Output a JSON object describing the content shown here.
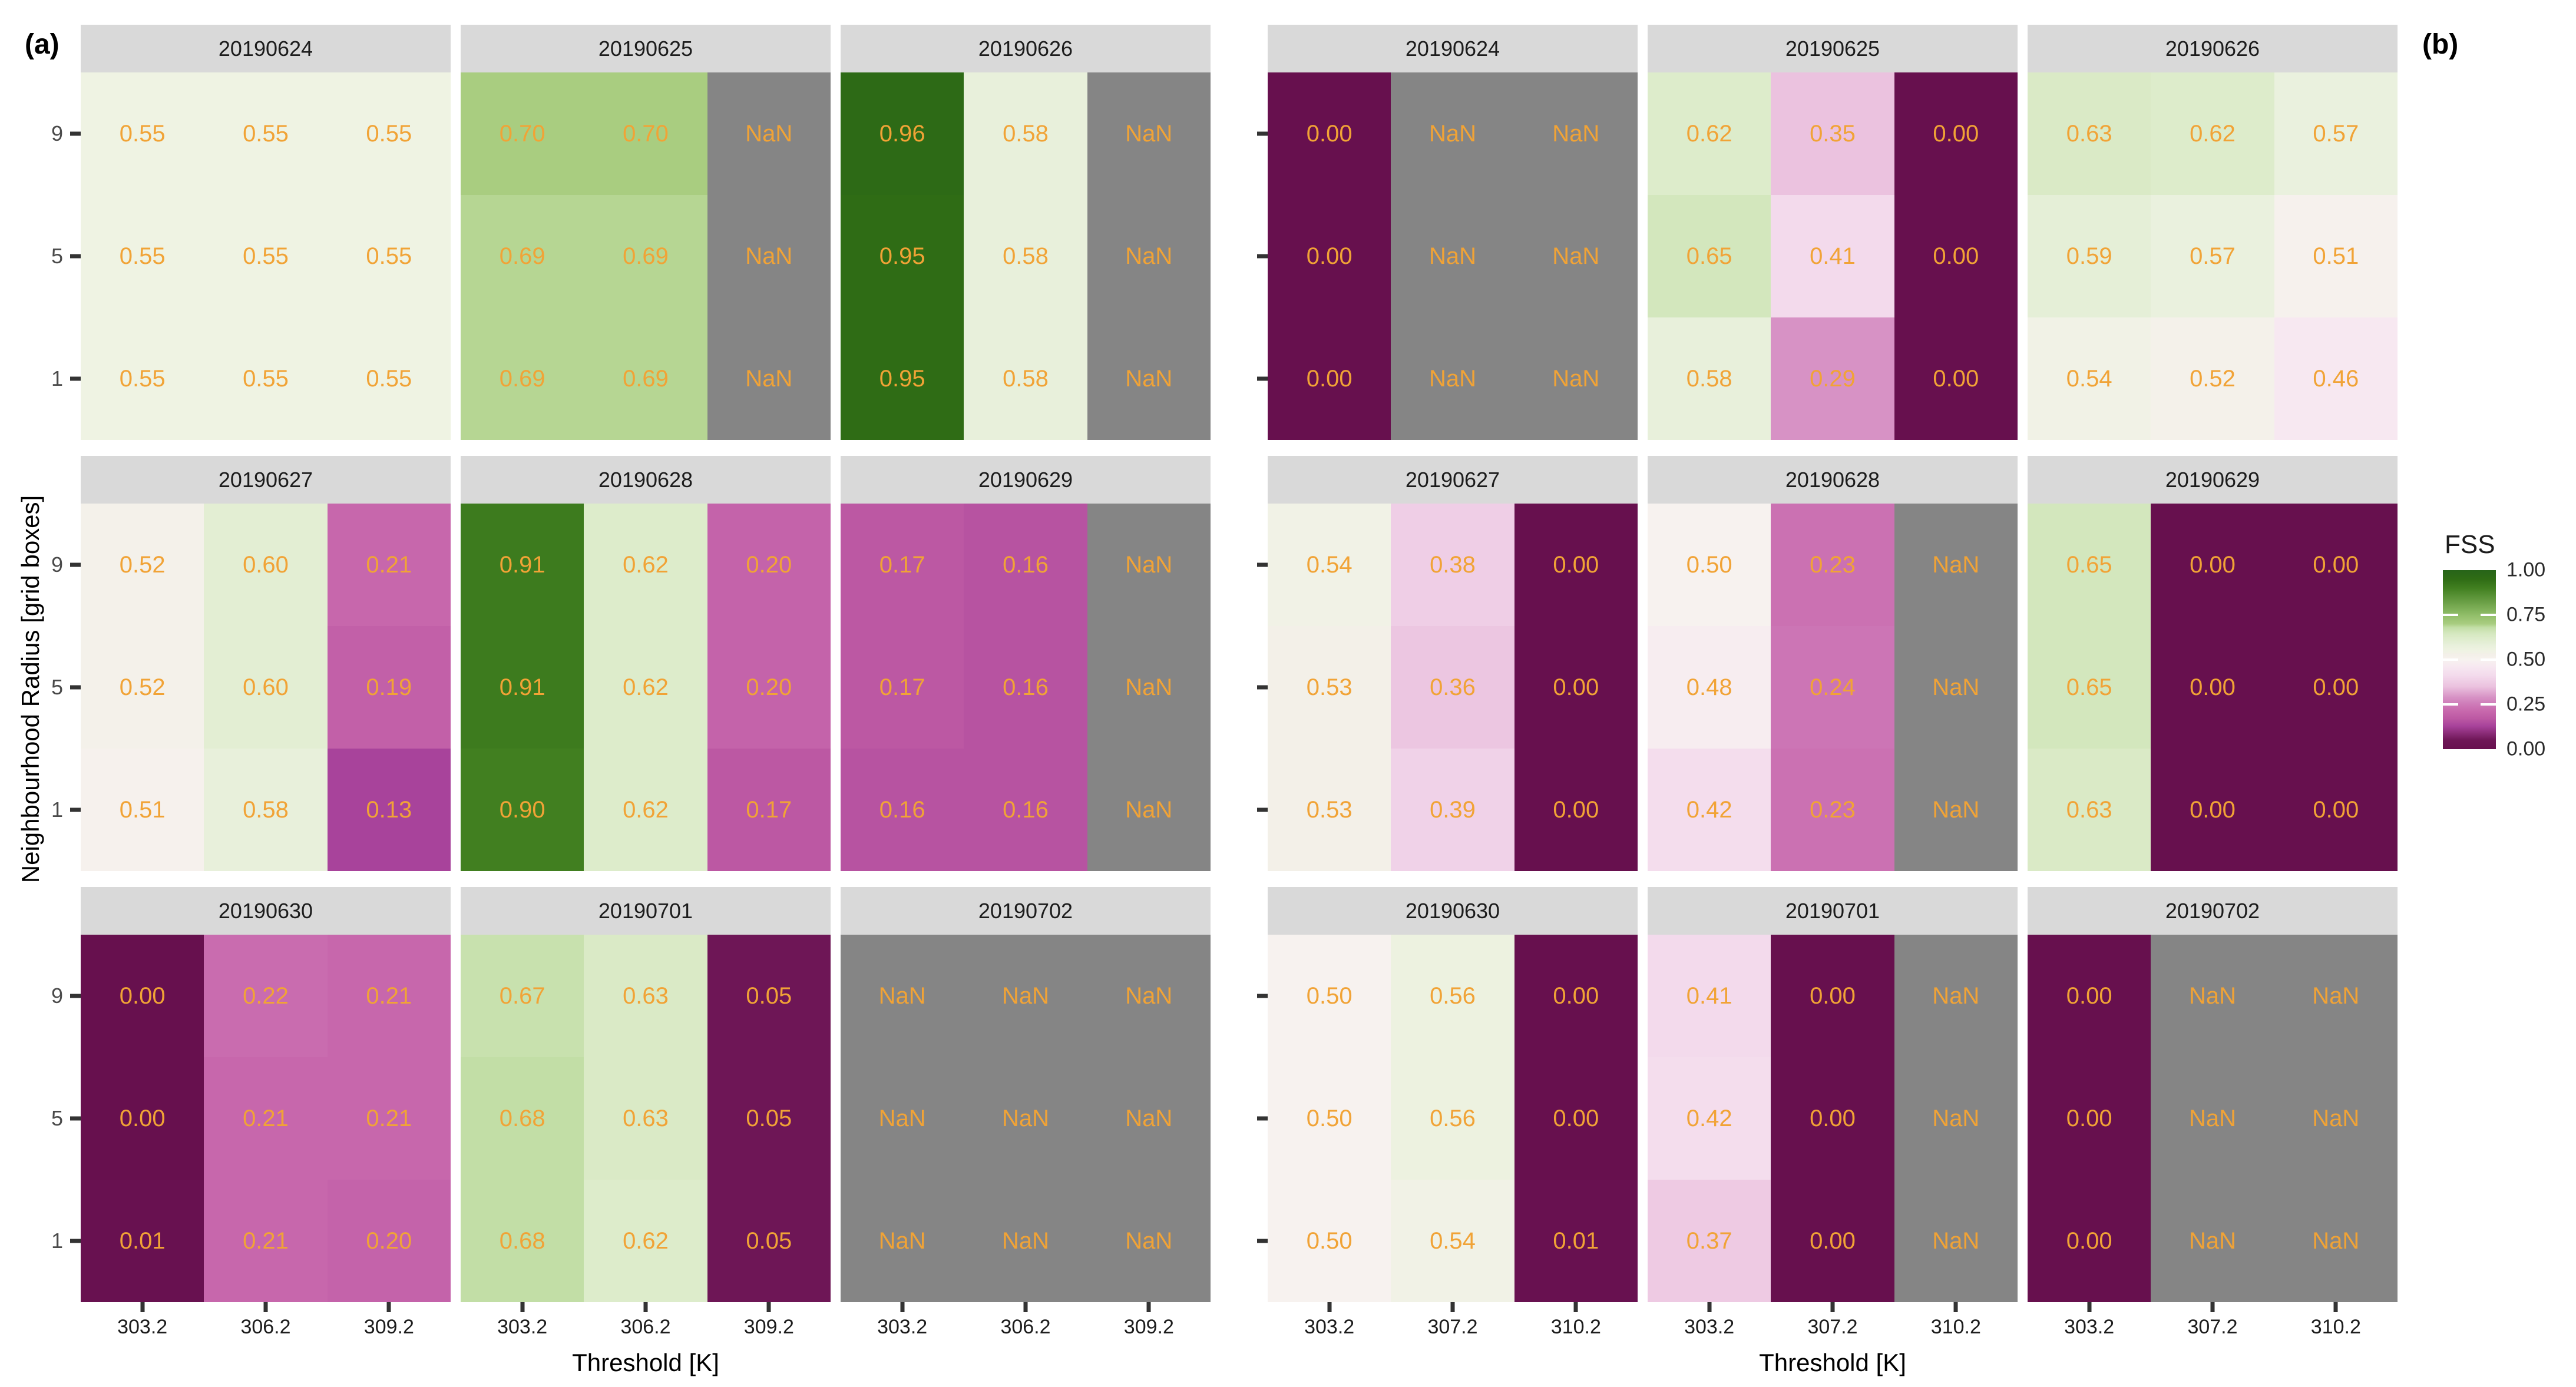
{
  "figure": {
    "background": "#FFFFFF",
    "ylabel": "Neighbourhood Radius [grid boxes]"
  },
  "legend": {
    "title": "FSS",
    "ticks": [
      "1.00",
      "0.75",
      "0.50",
      "0.25",
      "0.00"
    ],
    "tick_values": [
      1.0,
      0.75,
      0.5,
      0.25,
      0.0
    ]
  },
  "colors": {
    "nan_cell": "#858585",
    "value_text": "#F1A336",
    "strip_bg": "#D9D9D9",
    "strip_text": "#1C1C1C",
    "tick_mark": "#333333",
    "colormap": [
      [
        0.0,
        "#67104E"
      ],
      [
        0.05,
        "#6E1656"
      ],
      [
        0.13,
        "#A8439B"
      ],
      [
        0.17,
        "#BC58A3"
      ],
      [
        0.21,
        "#C767AC"
      ],
      [
        0.25,
        "#CE7AB8"
      ],
      [
        0.29,
        "#D792C5"
      ],
      [
        0.35,
        "#EBC2DF"
      ],
      [
        0.41,
        "#F3DAEC"
      ],
      [
        0.46,
        "#F7E8F1"
      ],
      [
        0.5,
        "#F7F2EF"
      ],
      [
        0.53,
        "#F3F0E8"
      ],
      [
        0.55,
        "#EFF3E3"
      ],
      [
        0.58,
        "#E8F0DB"
      ],
      [
        0.62,
        "#DDECCB"
      ],
      [
        0.65,
        "#D3E7BD"
      ],
      [
        0.68,
        "#C2DEA6"
      ],
      [
        0.7,
        "#A9CD80"
      ],
      [
        0.75,
        "#90BD68"
      ],
      [
        0.9,
        "#417F20"
      ],
      [
        0.95,
        "#2F6C15"
      ],
      [
        1.0,
        "#276419"
      ]
    ]
  },
  "chart_data": {
    "type": "heatmap",
    "ylabel": "Neighbourhood Radius [grid boxes]",
    "radii": [
      "9",
      "5",
      "1"
    ],
    "legend_title": "FSS",
    "value_range": [
      0,
      1
    ],
    "panels": [
      {
        "id": "a",
        "label": "(a)",
        "xlabel": "Threshold [K]",
        "thresholds": [
          "303.2",
          "306.2",
          "309.2"
        ],
        "facets": [
          {
            "date": "20190624",
            "rows": [
              [
                "0.55",
                "0.55",
                "0.55"
              ],
              [
                "0.55",
                "0.55",
                "0.55"
              ],
              [
                "0.55",
                "0.55",
                "0.55"
              ]
            ]
          },
          {
            "date": "20190625",
            "rows": [
              [
                "0.70",
                "0.70",
                "NaN"
              ],
              [
                "0.69",
                "0.69",
                "NaN"
              ],
              [
                "0.69",
                "0.69",
                "NaN"
              ]
            ]
          },
          {
            "date": "20190626",
            "rows": [
              [
                "0.96",
                "0.58",
                "NaN"
              ],
              [
                "0.95",
                "0.58",
                "NaN"
              ],
              [
                "0.95",
                "0.58",
                "NaN"
              ]
            ]
          },
          {
            "date": "20190627",
            "rows": [
              [
                "0.52",
                "0.60",
                "0.21"
              ],
              [
                "0.52",
                "0.60",
                "0.19"
              ],
              [
                "0.51",
                "0.58",
                "0.13"
              ]
            ]
          },
          {
            "date": "20190628",
            "rows": [
              [
                "0.91",
                "0.62",
                "0.20"
              ],
              [
                "0.91",
                "0.62",
                "0.20"
              ],
              [
                "0.90",
                "0.62",
                "0.17"
              ]
            ]
          },
          {
            "date": "20190629",
            "rows": [
              [
                "0.17",
                "0.16",
                "NaN"
              ],
              [
                "0.17",
                "0.16",
                "NaN"
              ],
              [
                "0.16",
                "0.16",
                "NaN"
              ]
            ]
          },
          {
            "date": "20190630",
            "rows": [
              [
                "0.00",
                "0.22",
                "0.21"
              ],
              [
                "0.00",
                "0.21",
                "0.21"
              ],
              [
                "0.01",
                "0.21",
                "0.20"
              ]
            ]
          },
          {
            "date": "20190701",
            "rows": [
              [
                "0.67",
                "0.63",
                "0.05"
              ],
              [
                "0.68",
                "0.63",
                "0.05"
              ],
              [
                "0.68",
                "0.62",
                "0.05"
              ]
            ]
          },
          {
            "date": "20190702",
            "rows": [
              [
                "NaN",
                "NaN",
                "NaN"
              ],
              [
                "NaN",
                "NaN",
                "NaN"
              ],
              [
                "NaN",
                "NaN",
                "NaN"
              ]
            ]
          }
        ]
      },
      {
        "id": "b",
        "label": "(b)",
        "xlabel": "Threshold [K]",
        "thresholds": [
          "303.2",
          "307.2",
          "310.2"
        ],
        "facets": [
          {
            "date": "20190624",
            "rows": [
              [
                "0.00",
                "NaN",
                "NaN"
              ],
              [
                "0.00",
                "NaN",
                "NaN"
              ],
              [
                "0.00",
                "NaN",
                "NaN"
              ]
            ]
          },
          {
            "date": "20190625",
            "rows": [
              [
                "0.62",
                "0.35",
                "0.00"
              ],
              [
                "0.65",
                "0.41",
                "0.00"
              ],
              [
                "0.58",
                "0.29",
                "0.00"
              ]
            ]
          },
          {
            "date": "20190626",
            "rows": [
              [
                "0.63",
                "0.62",
                "0.57"
              ],
              [
                "0.59",
                "0.57",
                "0.51"
              ],
              [
                "0.54",
                "0.52",
                "0.46"
              ]
            ]
          },
          {
            "date": "20190627",
            "rows": [
              [
                "0.54",
                "0.38",
                "0.00"
              ],
              [
                "0.53",
                "0.36",
                "0.00"
              ],
              [
                "0.53",
                "0.39",
                "0.00"
              ]
            ]
          },
          {
            "date": "20190628",
            "rows": [
              [
                "0.50",
                "0.23",
                "NaN"
              ],
              [
                "0.48",
                "0.24",
                "NaN"
              ],
              [
                "0.42",
                "0.23",
                "NaN"
              ]
            ]
          },
          {
            "date": "20190629",
            "rows": [
              [
                "0.65",
                "0.00",
                "0.00"
              ],
              [
                "0.65",
                "0.00",
                "0.00"
              ],
              [
                "0.63",
                "0.00",
                "0.00"
              ]
            ]
          },
          {
            "date": "20190630",
            "rows": [
              [
                "0.50",
                "0.56",
                "0.00"
              ],
              [
                "0.50",
                "0.56",
                "0.00"
              ],
              [
                "0.50",
                "0.54",
                "0.01"
              ]
            ]
          },
          {
            "date": "20190701",
            "rows": [
              [
                "0.41",
                "0.00",
                "NaN"
              ],
              [
                "0.42",
                "0.00",
                "NaN"
              ],
              [
                "0.37",
                "0.00",
                "NaN"
              ]
            ]
          },
          {
            "date": "20190702",
            "rows": [
              [
                "0.00",
                "NaN",
                "NaN"
              ],
              [
                "0.00",
                "NaN",
                "NaN"
              ],
              [
                "0.00",
                "NaN",
                "NaN"
              ]
            ]
          }
        ]
      }
    ]
  }
}
